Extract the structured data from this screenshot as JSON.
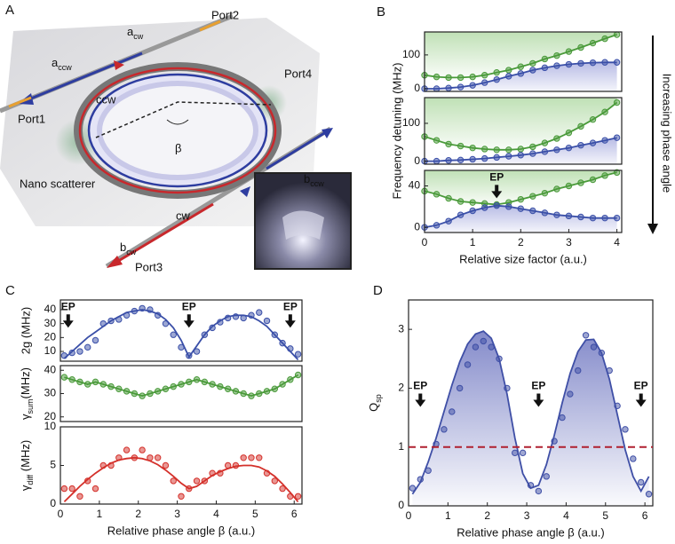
{
  "diagram": {
    "panel": "A",
    "labels": [
      "Port2",
      [
        {
          "text": "a"
        },
        {
          "text": "cw",
          "sub": true
        }
      ],
      [
        {
          "text": "a"
        },
        {
          "text": "ccw",
          "sub": true
        }
      ],
      "Port4",
      "ccw",
      "β",
      "Port1",
      [
        {
          "text": "b"
        },
        {
          "text": "ccw",
          "sub": true
        }
      ],
      "Nano scatterer",
      "cw",
      [
        {
          "text": "b"
        },
        {
          "text": "cw",
          "sub": true
        }
      ],
      "Port3"
    ]
  },
  "chart_data": [
    {
      "type": "scatter",
      "panel": "B",
      "x": [
        0,
        0.25,
        0.5,
        0.75,
        1,
        1.25,
        1.5,
        1.75,
        2,
        2.25,
        2.5,
        2.75,
        3,
        3.25,
        3.5,
        3.75,
        4
      ],
      "xlim": [
        0,
        4.1
      ],
      "ylim": [
        -8,
        168
      ],
      "yticks": [
        0,
        100
      ],
      "series": [
        {
          "color": "#4a9a3a",
          "style": "points+line",
          "fill": "up",
          "values": [
            40,
            35,
            33,
            33,
            35,
            40,
            48,
            55,
            65,
            75,
            88,
            98,
            110,
            122,
            135,
            148,
            160
          ]
        },
        {
          "color": "#3a4fa8",
          "style": "points+line",
          "fill": "down",
          "values": [
            0,
            0,
            2,
            5,
            10,
            18,
            27,
            37,
            45,
            55,
            62,
            68,
            72,
            75,
            77,
            78,
            78
          ]
        }
      ]
    },
    {
      "type": "scatter",
      "x": [
        0,
        0.25,
        0.5,
        0.75,
        1,
        1.25,
        1.5,
        1.75,
        2,
        2.25,
        2.5,
        2.75,
        3,
        3.25,
        3.5,
        3.75,
        4
      ],
      "xlim": [
        0,
        4.1
      ],
      "ylim": [
        -8,
        168
      ],
      "yticks": [
        0,
        100
      ],
      "ylabel": "Frequency detuning (MHz)",
      "side_annotation": "Increasing phase angle",
      "series": [
        {
          "color": "#4a9a3a",
          "style": "points+line",
          "fill": "up",
          "values": [
            65,
            55,
            45,
            40,
            35,
            32,
            30,
            30,
            32,
            38,
            48,
            60,
            75,
            92,
            110,
            130,
            155
          ]
        },
        {
          "color": "#3a4fa8",
          "style": "points+line",
          "fill": "down",
          "values": [
            0,
            0,
            2,
            3,
            5,
            7,
            10,
            13,
            16,
            20,
            25,
            30,
            35,
            42,
            48,
            55,
            62
          ]
        }
      ]
    },
    {
      "type": "scatter",
      "x": [
        0,
        0.25,
        0.5,
        0.75,
        1,
        1.25,
        1.5,
        1.75,
        2,
        2.25,
        2.5,
        2.75,
        3,
        3.25,
        3.5,
        3.75,
        4
      ],
      "xlim": [
        0,
        4.1
      ],
      "ylim": [
        -5,
        55
      ],
      "yticks": [
        0,
        40
      ],
      "xticks": [
        0,
        1,
        2,
        3,
        4
      ],
      "xlabel": "Relative size factor (a.u.)",
      "annotations": [
        {
          "x": 1.5,
          "text": "EP"
        }
      ],
      "series": [
        {
          "color": "#4a9a3a",
          "style": "points+line",
          "fill": "up",
          "values": [
            35,
            32,
            28,
            25,
            24,
            23,
            22,
            24,
            27,
            30,
            33,
            37,
            40,
            43,
            46,
            50,
            53
          ]
        },
        {
          "color": "#3a4fa8",
          "style": "points+line",
          "fill": "down",
          "values": [
            0,
            2,
            6,
            12,
            16,
            19,
            21,
            20,
            18,
            16,
            14,
            12,
            11,
            10,
            9,
            9,
            9
          ]
        }
      ]
    },
    {
      "type": "scatter",
      "panel": "C",
      "x": [
        0.1,
        0.3,
        0.5,
        0.7,
        0.9,
        1.1,
        1.3,
        1.5,
        1.7,
        1.9,
        2.1,
        2.3,
        2.5,
        2.7,
        2.9,
        3.1,
        3.3,
        3.5,
        3.7,
        3.9,
        4.1,
        4.3,
        4.5,
        4.7,
        4.9,
        5.1,
        5.3,
        5.5,
        5.7,
        5.9,
        6.1
      ],
      "xlim": [
        0,
        6.2
      ],
      "ylim": [
        3,
        47
      ],
      "yticks": [
        10,
        20,
        30,
        40
      ],
      "ylabel": "2g (MHz)",
      "annotations": [
        {
          "x": 0.2,
          "text": "EP"
        },
        {
          "x": 3.3,
          "text": "EP"
        },
        {
          "x": 5.9,
          "text": "EP"
        }
      ],
      "series": [
        {
          "color": "#3a4fa8",
          "style": "line",
          "values": [
            5,
            10,
            15,
            20,
            24,
            28,
            32,
            35,
            38,
            39,
            40,
            39,
            37,
            33,
            27,
            18,
            6,
            14,
            22,
            28,
            32,
            35,
            36,
            36,
            35,
            32,
            28,
            22,
            16,
            10,
            4
          ]
        },
        {
          "color": "#3a4fa8",
          "style": "points",
          "values": [
            7,
            9,
            10,
            13,
            18,
            30,
            32,
            33,
            36,
            39,
            41,
            40,
            36,
            30,
            22,
            13,
            7,
            10,
            22,
            27,
            31,
            34,
            35,
            34,
            36,
            38,
            32,
            22,
            16,
            12,
            8
          ]
        }
      ]
    },
    {
      "type": "scatter",
      "x": [
        0.1,
        0.3,
        0.5,
        0.7,
        0.9,
        1.1,
        1.3,
        1.5,
        1.7,
        1.9,
        2.1,
        2.3,
        2.5,
        2.7,
        2.9,
        3.1,
        3.3,
        3.5,
        3.7,
        3.9,
        4.1,
        4.3,
        4.5,
        4.7,
        4.9,
        5.1,
        5.3,
        5.5,
        5.7,
        5.9,
        6.1
      ],
      "xlim": [
        0,
        6.2
      ],
      "ylim": [
        18,
        42
      ],
      "yticks": [
        20,
        30,
        40
      ],
      "ylabel": [
        {
          "text": "γ"
        },
        {
          "text": "sum",
          "sub": true
        },
        {
          "text": "(MHz)"
        }
      ],
      "series": [
        {
          "color": "#4a9a3a",
          "style": "points+line",
          "values": [
            37,
            36,
            35,
            34,
            35,
            34,
            33,
            32,
            31,
            30,
            29,
            30,
            31,
            32,
            33,
            34,
            35,
            36,
            35,
            34,
            33,
            32,
            31,
            30,
            29,
            30,
            31,
            32,
            34,
            36,
            38
          ]
        }
      ]
    },
    {
      "type": "scatter",
      "x": [
        0.1,
        0.3,
        0.5,
        0.7,
        0.9,
        1.1,
        1.3,
        1.5,
        1.7,
        1.9,
        2.1,
        2.3,
        2.5,
        2.7,
        2.9,
        3.1,
        3.3,
        3.5,
        3.7,
        3.9,
        4.1,
        4.3,
        4.5,
        4.7,
        4.9,
        5.1,
        5.3,
        5.5,
        5.7,
        5.9,
        6.1
      ],
      "xlim": [
        0,
        6.2
      ],
      "ylim": [
        0,
        10
      ],
      "yticks": [
        0,
        5,
        10
      ],
      "xticks": [
        0,
        1,
        2,
        3,
        4,
        5,
        6
      ],
      "xlabel": "Relative phase angle β (a.u.)",
      "ylabel": [
        {
          "text": "γ"
        },
        {
          "text": "diff",
          "sub": true
        },
        {
          "text": " (MHz)"
        }
      ],
      "series": [
        {
          "color": "#d4302a",
          "style": "line",
          "values": [
            0.3,
            1.3,
            2.3,
            3.2,
            4,
            4.7,
            5.3,
            5.7,
            5.9,
            6,
            5.9,
            5.6,
            5.1,
            4.4,
            3.6,
            2.7,
            2,
            2.3,
            3,
            3.7,
            4.2,
            4.6,
            4.9,
            5,
            5,
            4.8,
            4.3,
            3.6,
            2.6,
            1.5,
            0.3
          ]
        },
        {
          "color": "#d4302a",
          "style": "points",
          "values": [
            2,
            2,
            1,
            3,
            2,
            5,
            5,
            6,
            7,
            6,
            7,
            6,
            6,
            5,
            3,
            1,
            2,
            3,
            3,
            4,
            4,
            5,
            5,
            6,
            6,
            6,
            4,
            3,
            2,
            1,
            1
          ]
        }
      ]
    },
    {
      "type": "scatter",
      "panel": "D",
      "x": [
        0.1,
        0.3,
        0.5,
        0.7,
        0.9,
        1.1,
        1.3,
        1.5,
        1.7,
        1.9,
        2.1,
        2.3,
        2.5,
        2.7,
        2.9,
        3.1,
        3.3,
        3.5,
        3.7,
        3.9,
        4.1,
        4.3,
        4.5,
        4.7,
        4.9,
        5.1,
        5.3,
        5.5,
        5.7,
        5.9,
        6.1
      ],
      "xlim": [
        0,
        6.2
      ],
      "ylim": [
        0,
        3.5
      ],
      "yticks": [
        0,
        1,
        2,
        3
      ],
      "xticks": [
        0,
        1,
        2,
        3,
        4,
        5,
        6
      ],
      "xlabel": "Relative phase angle β (a.u.)",
      "ylabel": [
        {
          "text": "Q"
        },
        {
          "text": "sp",
          "sub": true
        }
      ],
      "hline": {
        "value": 1,
        "color": "#b02030"
      },
      "annotations": [
        {
          "x": 0.3,
          "text": "EP"
        },
        {
          "x": 3.3,
          "text": "EP"
        },
        {
          "x": 5.9,
          "text": "EP"
        }
      ],
      "series": [
        {
          "color": "#3f4fa6",
          "style": "line",
          "fill": "under",
          "values": [
            0.2,
            0.4,
            0.75,
            1.15,
            1.6,
            2.05,
            2.45,
            2.75,
            2.92,
            2.97,
            2.85,
            2.5,
            1.9,
            1.15,
            0.55,
            0.3,
            0.35,
            0.7,
            1.2,
            1.75,
            2.25,
            2.62,
            2.82,
            2.83,
            2.6,
            2.15,
            1.55,
            0.95,
            0.5,
            0.25,
            0.5
          ]
        },
        {
          "color": "#3f4fa6",
          "style": "points",
          "values": [
            0.3,
            0.45,
            0.6,
            1.05,
            1.3,
            1.6,
            2,
            2.4,
            2.7,
            2.8,
            2.7,
            2.5,
            2,
            0.9,
            0.9,
            0.35,
            0.25,
            0.5,
            1.1,
            1.5,
            1.9,
            2.3,
            2.9,
            2.7,
            2.6,
            2.3,
            1.7,
            1.3,
            0.8,
            0.4,
            0.2
          ]
        }
      ]
    }
  ]
}
